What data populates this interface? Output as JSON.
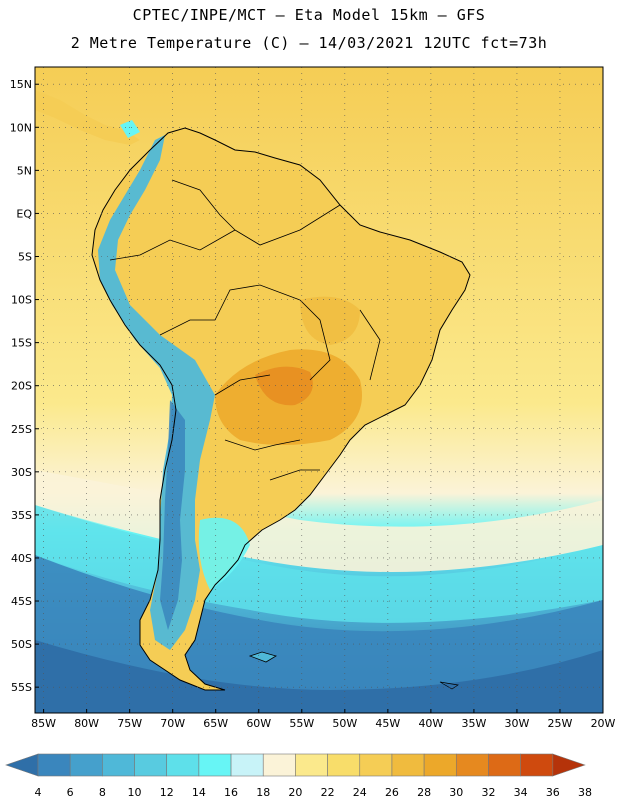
{
  "title": {
    "line1": "CPTEC/INPE/MCT –  Eta Model 15km – GFS",
    "line2": "2 Metre Temperature (C) – 14/03/2021 12UTC fct=73h"
  },
  "map": {
    "lat_labels": [
      "15N",
      "10N",
      "5N",
      "EQ",
      "5S",
      "10S",
      "15S",
      "20S",
      "25S",
      "30S",
      "35S",
      "40S",
      "45S",
      "50S",
      "55S"
    ],
    "lat_values": [
      15,
      10,
      5,
      0,
      -5,
      -10,
      -15,
      -20,
      -25,
      -30,
      -35,
      -40,
      -45,
      -50,
      -55
    ],
    "lon_labels": [
      "85W",
      "80W",
      "75W",
      "70W",
      "65W",
      "60W",
      "55W",
      "50W",
      "45W",
      "40W",
      "35W",
      "30W",
      "25W",
      "20W"
    ],
    "lon_values": [
      -85,
      -80,
      -75,
      -70,
      -65,
      -60,
      -55,
      -50,
      -45,
      -40,
      -35,
      -30,
      -25,
      -20
    ],
    "extent": {
      "lon_min": -86,
      "lon_max": -20,
      "lat_min": -58,
      "lat_max": 17
    }
  },
  "colorbar": {
    "labels": [
      "4",
      "6",
      "8",
      "10",
      "12",
      "14",
      "16",
      "18",
      "20",
      "22",
      "24",
      "26",
      "28",
      "30",
      "32",
      "34",
      "36",
      "38"
    ],
    "colors": [
      "#2f6fa8",
      "#3a86bd",
      "#45a0cc",
      "#4fb8d8",
      "#58cbe0",
      "#5ee0ea",
      "#67f5f5",
      "#c8f3f8",
      "#fbf3d8",
      "#fbe98c",
      "#f8dd6a",
      "#f5cd55",
      "#f0bb3e",
      "#eca82a",
      "#e6891f",
      "#dd6a16",
      "#cf4a0e",
      "#b5330a"
    ]
  }
}
